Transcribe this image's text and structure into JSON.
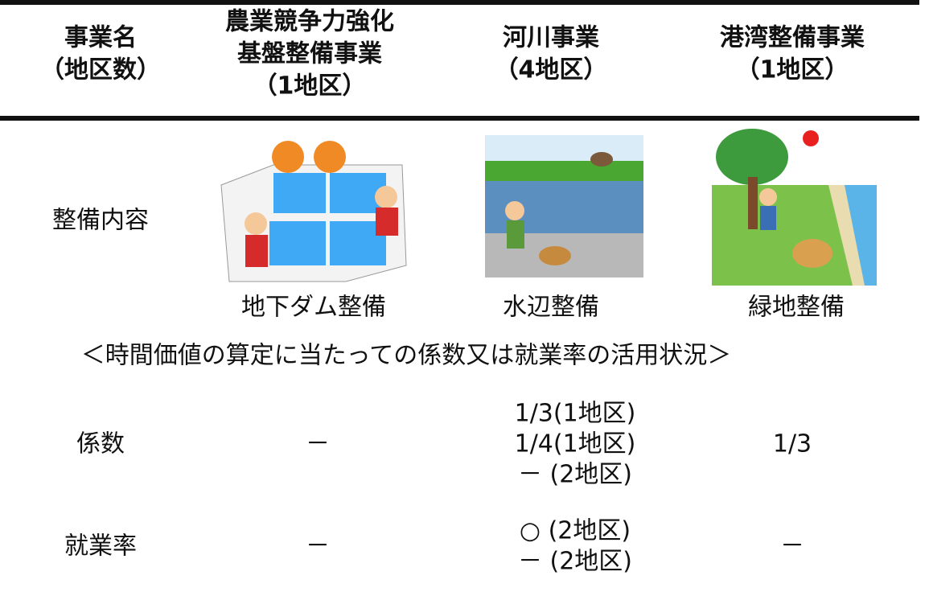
{
  "header": {
    "columns": [
      [
        "事業名",
        "（地区数）"
      ],
      [
        "農業競争力強化",
        "基盤整備事業",
        "（1地区）"
      ],
      [
        "河川事業",
        "（4地区）"
      ],
      [
        "港湾整備事業",
        "（1地区）"
      ]
    ]
  },
  "content_row": {
    "label": "整備内容",
    "captions": [
      "地下ダム整備",
      "水辺整備",
      "緑地整備"
    ]
  },
  "section_title": "＜時間価値の算定に当たっての係数又は就業率の活用状況＞",
  "rows": [
    {
      "label": "係数",
      "cells": [
        [
          "－"
        ],
        [
          "1/3(1地区)",
          "1/4(1地区)",
          "－ (2地区)"
        ],
        [
          "1/3"
        ]
      ]
    },
    {
      "label": "就業率",
      "cells": [
        [
          "－"
        ],
        [
          "○ (2地区)",
          "－ (2地区)"
        ],
        [
          "－"
        ]
      ]
    }
  ]
}
